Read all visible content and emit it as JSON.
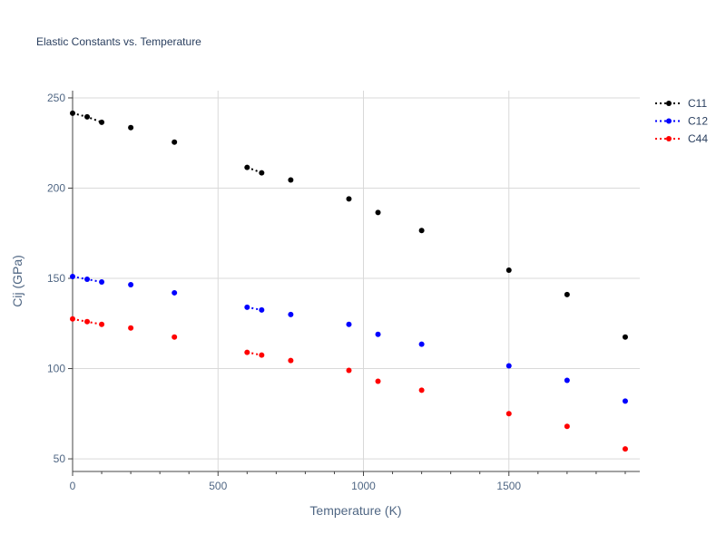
{
  "chart_data": {
    "type": "scatter",
    "title": "Elastic Constants vs. Temperature",
    "xlabel": "Temperature (K)",
    "ylabel": "Cij (GPa)",
    "xlim": [
      0,
      1950
    ],
    "ylim": [
      43,
      254
    ],
    "xticks": [
      0,
      500,
      1000,
      1500
    ],
    "yticks": [
      50,
      100,
      150,
      200,
      250
    ],
    "grid": true,
    "legend_position": "top-right",
    "series": [
      {
        "name": "C11",
        "color": "#000000",
        "marker": "circle",
        "line_style": "dotted",
        "segments": [
          [
            [
              0,
              241.5
            ],
            [
              50,
              239.5
            ],
            [
              100,
              236.5
            ]
          ],
          [
            [
              200,
              233.5
            ]
          ],
          [
            [
              350,
              225.5
            ]
          ],
          [
            [
              600,
              211.5
            ],
            [
              650,
              208.5
            ]
          ],
          [
            [
              750,
              204.5
            ]
          ],
          [
            [
              950,
              194
            ]
          ],
          [
            [
              1050,
              186.5
            ]
          ],
          [
            [
              1200,
              176.5
            ]
          ],
          [
            [
              1500,
              154.5
            ]
          ],
          [
            [
              1700,
              141
            ]
          ],
          [
            [
              1900,
              117.5
            ]
          ]
        ]
      },
      {
        "name": "C12",
        "color": "#0000ff",
        "marker": "circle",
        "line_style": "dotted",
        "segments": [
          [
            [
              0,
              151
            ],
            [
              50,
              149.5
            ],
            [
              100,
              148
            ]
          ],
          [
            [
              200,
              146.5
            ]
          ],
          [
            [
              350,
              142
            ]
          ],
          [
            [
              600,
              134
            ],
            [
              650,
              132.5
            ]
          ],
          [
            [
              750,
              130
            ]
          ],
          [
            [
              950,
              124.5
            ]
          ],
          [
            [
              1050,
              119
            ]
          ],
          [
            [
              1200,
              113.5
            ]
          ],
          [
            [
              1500,
              101.5
            ]
          ],
          [
            [
              1700,
              93.5
            ]
          ],
          [
            [
              1900,
              82
            ]
          ]
        ]
      },
      {
        "name": "C44",
        "color": "#ff0000",
        "marker": "circle",
        "line_style": "dotted",
        "segments": [
          [
            [
              0,
              127.5
            ],
            [
              50,
              126
            ],
            [
              100,
              124.5
            ]
          ],
          [
            [
              200,
              122.5
            ]
          ],
          [
            [
              350,
              117.5
            ]
          ],
          [
            [
              600,
              109
            ],
            [
              650,
              107.5
            ]
          ],
          [
            [
              750,
              104.5
            ]
          ],
          [
            [
              950,
              99
            ]
          ],
          [
            [
              1050,
              93
            ]
          ],
          [
            [
              1200,
              88
            ]
          ],
          [
            [
              1500,
              75
            ]
          ],
          [
            [
              1700,
              68
            ]
          ],
          [
            [
              1900,
              55.5
            ]
          ]
        ]
      }
    ]
  }
}
